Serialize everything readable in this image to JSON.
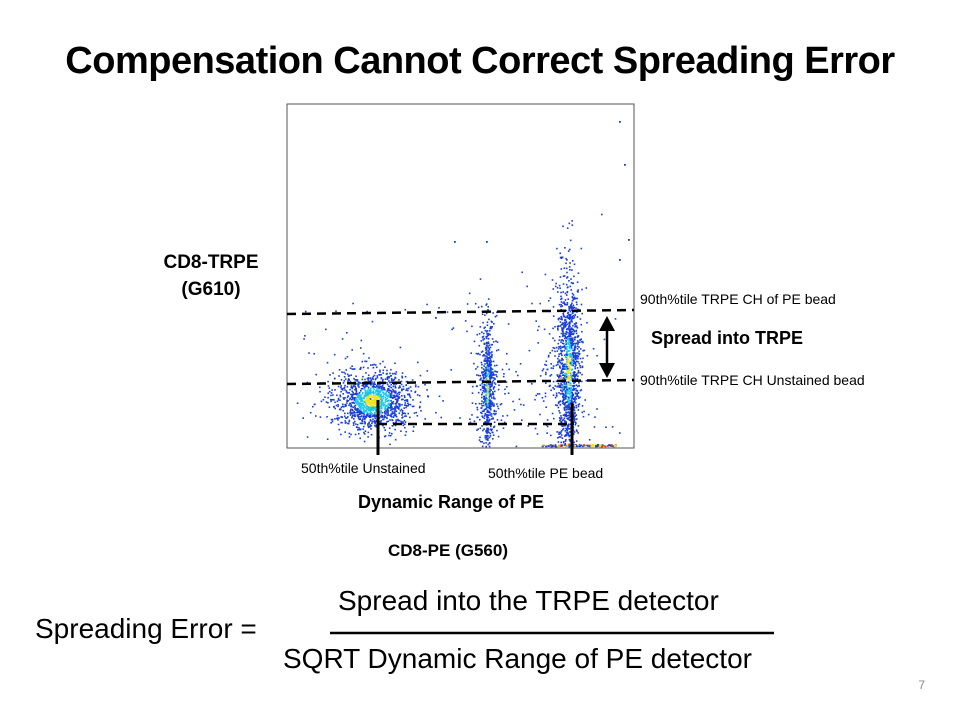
{
  "title": "Compensation Cannot Correct Spreading Error",
  "plot": {
    "y_axis_label_line1": "CD8-TRPE",
    "y_axis_label_line2": "(G610)",
    "x_axis_label": "CD8-PE (G560)",
    "annotations": {
      "upper_line": "90th%tile TRPE CH of PE bead",
      "lower_line": "90th%tile TRPE CH Unstained bead",
      "spread": "Spread into TRPE",
      "unstained_median": "50th%tile Unstained",
      "pe_median": "50th%tile PE bead",
      "dynamic_range": "Dynamic Range of PE"
    },
    "colors": {
      "density_low": "#1a3fd6",
      "density_mid": "#18c8e8",
      "density_high": "#f2e21a",
      "density_peak": "#e83a1a"
    }
  },
  "equation": {
    "lhs": "Spreading Error =",
    "numerator": "Spread into the TRPE detector",
    "denominator": "SQRT Dynamic Range of PE detector"
  },
  "page_number": "7"
}
